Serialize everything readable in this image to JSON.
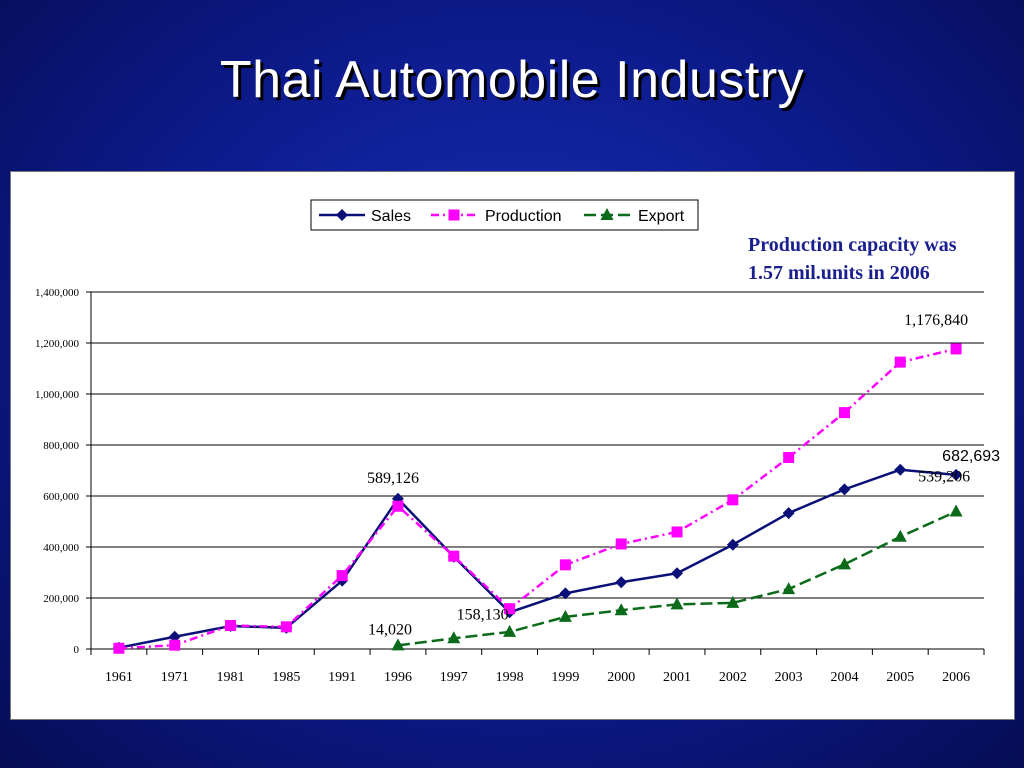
{
  "slide": {
    "title": "Thai Automobile Industry",
    "note_line1": "Production capacity was",
    "note_line2": "1.57 mil.units in 2006"
  },
  "colors": {
    "background": "#0c1a8a",
    "sales": "#0a1077",
    "production": "#ff00ff",
    "export": "#0b6b1a"
  },
  "chart_data": {
    "type": "line",
    "title": "",
    "xlabel": "",
    "ylabel": "",
    "categories": [
      "1961",
      "1971",
      "1981",
      "1985",
      "1991",
      "1996",
      "1997",
      "1998",
      "1999",
      "2000",
      "2001",
      "2002",
      "2003",
      "2004",
      "2005",
      "2006"
    ],
    "ylim": [
      0,
      1400000
    ],
    "yticks": [
      0,
      200000,
      400000,
      600000,
      800000,
      1000000,
      1200000,
      1400000
    ],
    "ytick_labels": [
      "0",
      "200,000",
      "400,000",
      "600,000",
      "800,000",
      "1,000,000",
      "1,200,000",
      "1,400,000"
    ],
    "grid": true,
    "legend_position": "top-center",
    "series": [
      {
        "name": "Sales",
        "color": "#0a1077",
        "marker": "diamond",
        "dash": "solid",
        "values": [
          5000,
          48000,
          90000,
          83000,
          268000,
          589126,
          362000,
          144000,
          218000,
          262000,
          297000,
          409000,
          533000,
          626000,
          703000,
          682693
        ]
      },
      {
        "name": "Production",
        "color": "#ff00ff",
        "marker": "square",
        "dash": "dashdot",
        "values": [
          3000,
          15000,
          92000,
          87000,
          288000,
          560000,
          364000,
          158130,
          330000,
          412000,
          459000,
          585000,
          751000,
          927000,
          1125000,
          1176840
        ]
      },
      {
        "name": "Export",
        "color": "#0b6b1a",
        "marker": "triangle",
        "dash": "longdash",
        "values": [
          null,
          null,
          null,
          null,
          null,
          14020,
          42000,
          67000,
          126000,
          152000,
          175000,
          181000,
          235000,
          332000,
          440000,
          539206
        ]
      }
    ],
    "annotations": [
      {
        "text": "1,176,840",
        "series": 1,
        "index": 15,
        "font": "serif"
      },
      {
        "text": "682,693",
        "series": 0,
        "index": 15,
        "font": "sans"
      },
      {
        "text": "589,126",
        "series": 0,
        "index": 5,
        "font": "serif"
      },
      {
        "text": "539,206",
        "series": 2,
        "index": 15,
        "font": "serif"
      },
      {
        "text": "158,130",
        "series": 1,
        "index": 7,
        "font": "serif"
      },
      {
        "text": "14,020",
        "series": 2,
        "index": 5,
        "font": "serif"
      }
    ]
  }
}
